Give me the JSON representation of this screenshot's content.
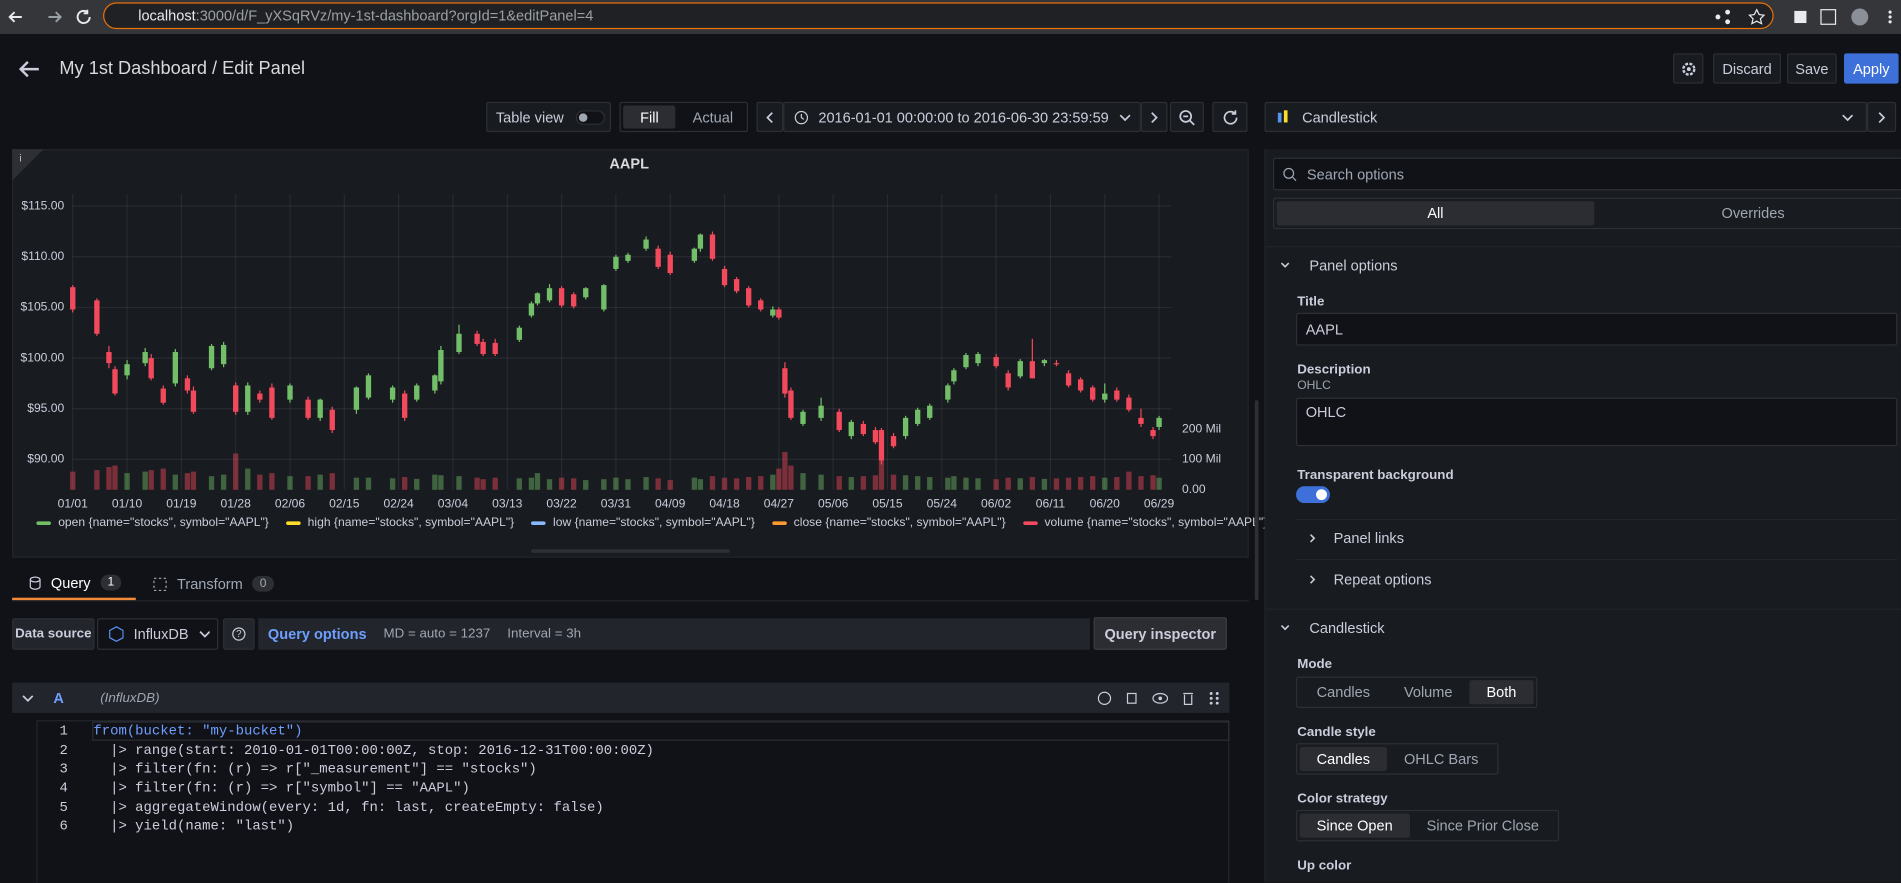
{
  "browser": {
    "host": "localhost",
    "path": ":3000/d/F_yXSqRVz/my-1st-dashboard?orgId=1&editPanel=4"
  },
  "header": {
    "title": "My 1st Dashboard / Edit Panel",
    "discard": "Discard",
    "save": "Save",
    "apply": "Apply"
  },
  "toolbar": {
    "table_view": "Table view",
    "fill": "Fill",
    "actual": "Actual",
    "time_range": "2016-01-01 00:00:00 to 2016-06-30 23:59:59"
  },
  "chart_data": {
    "type": "candlestick",
    "title": "AAPL",
    "up_color": "#73bf69",
    "down_color": "#f2495c",
    "grid": true,
    "x": [
      "2016-01-01",
      "2016-01-05",
      "2016-01-07",
      "2016-01-08",
      "2016-01-10",
      "2016-01-13",
      "2016-01-14",
      "2016-01-16",
      "2016-01-18",
      "2016-01-20",
      "2016-01-21",
      "2016-01-24",
      "2016-01-26",
      "2016-01-28",
      "2016-01-30",
      "2016-02-01",
      "2016-02-03",
      "2016-02-06",
      "2016-02-09",
      "2016-02-11",
      "2016-02-13",
      "2016-02-17",
      "2016-02-19",
      "2016-02-23",
      "2016-02-25",
      "2016-02-27",
      "2016-03-01",
      "2016-03-02",
      "2016-03-05",
      "2016-03-08",
      "2016-03-09",
      "2016-03-11",
      "2016-03-15",
      "2016-03-17",
      "2016-03-18",
      "2016-03-20",
      "2016-03-22",
      "2016-03-24",
      "2016-03-26",
      "2016-03-29",
      "2016-03-31",
      "2016-04-02",
      "2016-04-05",
      "2016-04-07",
      "2016-04-09",
      "2016-04-13",
      "2016-04-14",
      "2016-04-16",
      "2016-04-18",
      "2016-04-20",
      "2016-04-22",
      "2016-04-24",
      "2016-04-26",
      "2016-04-27",
      "2016-04-28",
      "2016-04-29",
      "2016-05-01",
      "2016-05-04",
      "2016-05-07",
      "2016-05-09",
      "2016-05-11",
      "2016-05-13",
      "2016-05-14",
      "2016-05-16",
      "2016-05-18",
      "2016-05-20",
      "2016-05-22",
      "2016-05-25",
      "2016-05-26",
      "2016-05-28",
      "2016-05-30",
      "2016-06-02",
      "2016-06-04",
      "2016-06-06",
      "2016-06-08",
      "2016-06-10",
      "2016-06-12",
      "2016-06-14",
      "2016-06-16",
      "2016-06-18",
      "2016-06-20",
      "2016-06-22",
      "2016-06-24",
      "2016-06-26",
      "2016-06-28",
      "2016-06-29"
    ],
    "series": [
      {
        "name": "open {name=\"stocks\", symbol=\"AAPL\"}",
        "color": "#73bf69",
        "values": [
          107.0,
          105.7,
          100.6,
          98.9,
          98.3,
          99.5,
          100.0,
          97.0,
          97.5,
          98.0,
          96.8,
          99.0,
          99.4,
          97.3,
          94.7,
          96.5,
          97.1,
          95.9,
          95.9,
          94.1,
          94.9,
          94.9,
          96.1,
          95.9,
          96.5,
          95.9,
          96.8,
          97.7,
          100.6,
          102.4,
          101.6,
          101.5,
          101.8,
          104.2,
          105.4,
          105.7,
          106.9,
          106.3,
          106.0,
          104.8,
          108.8,
          109.6,
          110.8,
          110.8,
          110.2,
          109.6,
          110.8,
          112.2,
          108.8,
          107.8,
          106.9,
          105.7,
          104.2,
          104.8,
          99.0,
          96.8,
          93.5,
          94.1,
          94.7,
          92.3,
          93.5,
          92.9,
          92.9,
          92.3,
          92.3,
          93.5,
          94.1,
          95.9,
          97.7,
          99.1,
          99.5,
          100.1,
          98.5,
          98.2,
          99.7,
          99.5,
          99.5,
          98.5,
          97.9,
          97.1,
          95.9,
          96.8,
          96.1,
          94.1,
          92.9,
          93.2
        ]
      },
      {
        "name": "high {name=\"stocks\", symbol=\"AAPL\"}",
        "color": "#fade2a",
        "values": [
          107.2,
          105.9,
          101.2,
          99.2,
          99.8,
          101.0,
          100.4,
          97.3,
          100.9,
          98.3,
          97.2,
          101.4,
          101.6,
          97.6,
          97.6,
          96.8,
          97.5,
          97.5,
          96.2,
          96.0,
          95.2,
          97.2,
          98.5,
          97.3,
          96.8,
          97.5,
          98.4,
          101.2,
          103.3,
          102.7,
          101.9,
          101.9,
          103.2,
          105.6,
          106.5,
          107.3,
          107.1,
          106.5,
          107.0,
          107.3,
          110.2,
          110.4,
          112.0,
          111.1,
          110.5,
          110.9,
          112.3,
          112.5,
          109.1,
          108.0,
          107.1,
          105.9,
          105.1,
          105.0,
          99.6,
          97.1,
          94.9,
          96.1,
          95.0,
          93.9,
          93.8,
          93.2,
          93.1,
          92.6,
          94.3,
          95.1,
          95.5,
          97.5,
          99.0,
          100.5,
          100.6,
          100.4,
          98.8,
          99.9,
          101.9,
          99.9,
          99.8,
          98.8,
          98.1,
          97.3,
          97.5,
          97.1,
          96.4,
          95.0,
          93.2,
          94.3
        ]
      },
      {
        "name": "low {name=\"stocks\", symbol=\"AAPL\"}",
        "color": "#8ab8ff",
        "values": [
          104.5,
          102.2,
          99.0,
          96.3,
          97.9,
          99.2,
          97.8,
          95.4,
          97.2,
          96.5,
          94.5,
          98.8,
          99.1,
          94.4,
          94.4,
          95.6,
          93.9,
          95.6,
          93.9,
          93.8,
          92.6,
          94.5,
          95.9,
          95.6,
          93.8,
          95.7,
          96.5,
          97.4,
          100.4,
          101.2,
          100.2,
          100.2,
          101.6,
          104.0,
          105.2,
          105.5,
          105.0,
          104.9,
          105.8,
          104.6,
          108.6,
          109.4,
          110.6,
          108.8,
          108.2,
          109.4,
          110.5,
          109.6,
          107.0,
          106.4,
          105.0,
          104.6,
          104.0,
          103.8,
          96.1,
          93.9,
          93.3,
          93.8,
          92.7,
          92.0,
          92.3,
          91.5,
          89.5,
          91.1,
          92.0,
          93.3,
          93.9,
          95.6,
          97.4,
          98.9,
          99.2,
          99.0,
          96.8,
          98.0,
          98.0,
          99.2,
          99.2,
          97.1,
          96.6,
          95.7,
          95.6,
          95.7,
          94.7,
          93.2,
          92.0,
          92.9
        ]
      },
      {
        "name": "close {name=\"stocks\", symbol=\"AAPL\"}",
        "color": "#ff9830",
        "values": [
          104.8,
          102.4,
          99.5,
          96.5,
          99.4,
          100.6,
          98.0,
          95.6,
          100.6,
          96.8,
          94.7,
          101.2,
          101.3,
          94.7,
          97.3,
          95.9,
          94.1,
          97.3,
          94.1,
          95.9,
          92.9,
          97.1,
          98.3,
          97.1,
          94.1,
          97.3,
          98.3,
          100.8,
          102.4,
          101.4,
          100.4,
          100.4,
          103.0,
          105.4,
          106.4,
          106.9,
          105.2,
          105.1,
          106.9,
          107.2,
          110.0,
          110.2,
          111.7,
          109.0,
          108.4,
          110.8,
          112.2,
          109.8,
          107.2,
          106.6,
          105.2,
          104.8,
          104.8,
          104.0,
          96.5,
          94.1,
          94.7,
          95.3,
          92.9,
          93.7,
          92.5,
          91.7,
          89.9,
          91.3,
          94.1,
          94.9,
          95.3,
          97.3,
          98.8,
          100.3,
          100.4,
          99.2,
          97.1,
          99.7,
          98.0,
          99.8,
          99.4,
          97.3,
          96.8,
          95.9,
          96.5,
          95.9,
          94.9,
          93.5,
          92.3,
          94.1
        ]
      },
      {
        "name": "volume {name=\"stocks\", symbol=\"AAPL\"}",
        "color": "#f2495c",
        "axis": "y2",
        "values": [
          60000000,
          65000000,
          75000000,
          80000000,
          55000000,
          60000000,
          65000000,
          70000000,
          50000000,
          55000000,
          60000000,
          45000000,
          50000000,
          120000000,
          70000000,
          50000000,
          55000000,
          45000000,
          45000000,
          50000000,
          55000000,
          40000000,
          40000000,
          38000000,
          42000000,
          36000000,
          50000000,
          48000000,
          45000000,
          40000000,
          35000000,
          40000000,
          38000000,
          40000000,
          55000000,
          35000000,
          40000000,
          38000000,
          32000000,
          35000000,
          40000000,
          35000000,
          42000000,
          38000000,
          32000000,
          40000000,
          35000000,
          45000000,
          40000000,
          38000000,
          42000000,
          45000000,
          50000000,
          70000000,
          125000000,
          80000000,
          55000000,
          50000000,
          45000000,
          42000000,
          45000000,
          48000000,
          100000000,
          50000000,
          48000000,
          45000000,
          42000000,
          40000000,
          45000000,
          40000000,
          38000000,
          35000000,
          40000000,
          38000000,
          42000000,
          36000000,
          38000000,
          40000000,
          42000000,
          45000000,
          40000000,
          42000000,
          60000000,
          45000000,
          48000000,
          40000000
        ]
      }
    ],
    "xlim": [
      "2016-01-01",
      "2016-07-01"
    ],
    "xticks": [
      {
        "value": "2016-01-01",
        "label": "01/01"
      },
      {
        "value": "2016-01-10",
        "label": "01/10"
      },
      {
        "value": "2016-01-19",
        "label": "01/19"
      },
      {
        "value": "2016-01-28",
        "label": "01/28"
      },
      {
        "value": "2016-02-06",
        "label": "02/06"
      },
      {
        "value": "2016-02-15",
        "label": "02/15"
      },
      {
        "value": "2016-02-24",
        "label": "02/24"
      },
      {
        "value": "2016-03-04",
        "label": "03/04"
      },
      {
        "value": "2016-03-13",
        "label": "03/13"
      },
      {
        "value": "2016-03-22",
        "label": "03/22"
      },
      {
        "value": "2016-03-31",
        "label": "03/31"
      },
      {
        "value": "2016-04-09",
        "label": "04/09"
      },
      {
        "value": "2016-04-18",
        "label": "04/18"
      },
      {
        "value": "2016-04-27",
        "label": "04/27"
      },
      {
        "value": "2016-05-06",
        "label": "05/06"
      },
      {
        "value": "2016-05-15",
        "label": "05/15"
      },
      {
        "value": "2016-05-24",
        "label": "05/24"
      },
      {
        "value": "2016-06-02",
        "label": "06/02"
      },
      {
        "value": "2016-06-11",
        "label": "06/11"
      },
      {
        "value": "2016-06-20",
        "label": "06/20"
      },
      {
        "value": "2016-06-29",
        "label": "06/29"
      }
    ],
    "ylim": [
      87.0,
      116.2
    ],
    "yticks": [
      {
        "value": 90,
        "label": "$90.00"
      },
      {
        "value": 95,
        "label": "$95.00"
      },
      {
        "value": 100,
        "label": "$100.00"
      },
      {
        "value": 105,
        "label": "$105.00"
      },
      {
        "value": 110,
        "label": "$110.00"
      },
      {
        "value": 115,
        "label": "$115.00"
      }
    ],
    "y2lim": [
      0,
      976000000
    ],
    "y2ticks": [
      {
        "value": 0,
        "label": "0.00"
      },
      {
        "value": 100000000,
        "label": "100 Mil"
      },
      {
        "value": 200000000,
        "label": "200 Mil"
      }
    ]
  },
  "query_tabs": [
    {
      "label": "Query",
      "count": 1
    },
    {
      "label": "Transform",
      "count": 0
    }
  ],
  "query_row": {
    "data_source_label": "Data source",
    "data_source": "InfluxDB",
    "query_options": "Query options",
    "md": "MD = auto = 1237",
    "interval": "Interval = 3h",
    "inspector": "Query inspector"
  },
  "query": {
    "ref": "A",
    "source": "(InfluxDB)",
    "line_numbers": [
      1,
      2,
      3,
      4,
      5,
      6
    ],
    "lines": [
      "from(bucket: \"my-bucket\")",
      "  |> range(start: 2010-01-01T00:00:00Z, stop: 2016-12-31T00:00:00Z)",
      "  |> filter(fn: (r) => r[\"_measurement\"] == \"stocks\")",
      "  |> filter(fn: (r) => r[\"symbol\"] == \"AAPL\")",
      "  |> aggregateWindow(every: 1d, fn: last, createEmpty: false)",
      "  |> yield(name: \"last\")"
    ]
  },
  "options": {
    "visualization": "Candlestick",
    "search": "Search options",
    "tabs": [
      "All",
      "Overrides"
    ],
    "tab_selected": 0,
    "panel_options": "Panel options",
    "title_label": "Title",
    "title_value": "AAPL",
    "description_label": "Description",
    "description_hint": "OHLC",
    "description_value": "OHLC",
    "transparent_label": "Transparent background",
    "panel_links": "Panel links",
    "repeat_options": "Repeat options",
    "candlestick": "Candlestick",
    "mode_label": "Mode",
    "modes": [
      "Candles",
      "Volume",
      "Both"
    ],
    "mode_selected": 2,
    "style_label": "Candle style",
    "styles": [
      "Candles",
      "OHLC Bars"
    ],
    "style_selected": 0,
    "strategy_label": "Color strategy",
    "strategies": [
      "Since Open",
      "Since Prior Close"
    ],
    "strategy_selected": 0,
    "up_color_label": "Up color"
  }
}
